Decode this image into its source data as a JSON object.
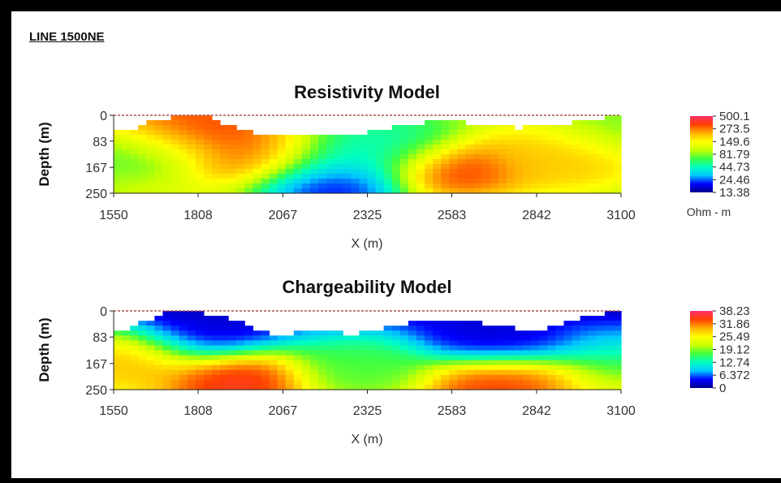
{
  "header": {
    "title": "LINE 1500NE"
  },
  "colors": {
    "ramp": [
      "#00008b",
      "#0000ff",
      "#00c8ff",
      "#00ffc0",
      "#40ff40",
      "#c8ff00",
      "#ffff00",
      "#ffb000",
      "#ff4000",
      "#ff3070"
    ]
  },
  "chart_data": [
    {
      "type": "heatmap",
      "title": "Resistivity Model",
      "xlabel": "X (m)",
      "ylabel": "Depth (m)",
      "xlim": [
        1550,
        3100
      ],
      "ylim": [
        250,
        0
      ],
      "x_ticks": [
        "1550",
        "1808",
        "2067",
        "2325",
        "2583",
        "2842",
        "3100"
      ],
      "y_ticks": [
        "0",
        "83",
        "167",
        "250"
      ],
      "colorbar": {
        "labels": [
          "500.1",
          "273.5",
          "149.6",
          "81.79",
          "44.73",
          "24.46",
          "13.38"
        ],
        "unit": "Ohm - m"
      },
      "surface_depth": [
        [
          1550,
          50
        ],
        [
          1580,
          40
        ],
        [
          1620,
          45
        ],
        [
          1650,
          25
        ],
        [
          1700,
          15
        ],
        [
          1760,
          0
        ],
        [
          1830,
          5
        ],
        [
          1900,
          30
        ],
        [
          1960,
          50
        ],
        [
          2040,
          65
        ],
        [
          2110,
          55
        ],
        [
          2200,
          55
        ],
        [
          2330,
          55
        ],
        [
          2440,
          30
        ],
        [
          2520,
          22
        ],
        [
          2600,
          20
        ],
        [
          2700,
          35
        ],
        [
          2790,
          40
        ],
        [
          2880,
          35
        ],
        [
          2980,
          20
        ],
        [
          3060,
          5
        ],
        [
          3100,
          0
        ]
      ],
      "anomalies": [
        {
          "x": 1800,
          "depth": 55,
          "level": 0.98
        },
        {
          "x": 1710,
          "depth": 30,
          "level": 0.9
        },
        {
          "x": 2000,
          "depth": 130,
          "level": 0.88
        },
        {
          "x": 2215,
          "depth": 220,
          "level": 0.0
        },
        {
          "x": 2240,
          "depth": 150,
          "level": 0.3
        },
        {
          "x": 2590,
          "depth": 170,
          "level": 0.97
        },
        {
          "x": 2400,
          "depth": 100,
          "level": 0.32
        },
        {
          "x": 1660,
          "depth": 95,
          "level": 0.4
        },
        {
          "x": 2890,
          "depth": 130,
          "level": 0.75
        },
        {
          "x": 2960,
          "depth": 120,
          "level": 0.78
        },
        {
          "x": 3060,
          "depth": 60,
          "level": 0.45
        }
      ]
    },
    {
      "type": "heatmap",
      "title": "Chargeability Model",
      "xlabel": "X (m)",
      "ylabel": "Depth (m)",
      "xlim": [
        1550,
        3100
      ],
      "ylim": [
        250,
        0
      ],
      "x_ticks": [
        "1550",
        "1808",
        "2067",
        "2325",
        "2583",
        "2842",
        "3100"
      ],
      "y_ticks": [
        "0",
        "83",
        "167",
        "250"
      ],
      "colorbar": {
        "labels": [
          "38.23",
          "31.86",
          "25.49",
          "19.12",
          "12.74",
          "6.372",
          "0"
        ],
        "unit": ""
      },
      "surface_depth": [
        [
          1550,
          65
        ],
        [
          1600,
          55
        ],
        [
          1650,
          30
        ],
        [
          1700,
          5
        ],
        [
          1760,
          0
        ],
        [
          1840,
          10
        ],
        [
          1930,
          30
        ],
        [
          2030,
          75
        ],
        [
          2100,
          70
        ],
        [
          2200,
          60
        ],
        [
          2290,
          75
        ],
        [
          2400,
          45
        ],
        [
          2500,
          35
        ],
        [
          2580,
          25
        ],
        [
          2700,
          45
        ],
        [
          2800,
          60
        ],
        [
          2870,
          55
        ],
        [
          2980,
          25
        ],
        [
          3100,
          0
        ]
      ],
      "anomalies": [
        {
          "x": 1600,
          "depth": 150,
          "level": 0.82
        },
        {
          "x": 1925,
          "depth": 215,
          "level": 1.0
        },
        {
          "x": 2710,
          "depth": 230,
          "level": 0.95
        },
        {
          "x": 2310,
          "depth": 185,
          "level": 0.45
        },
        {
          "x": 1820,
          "depth": 75,
          "level": 0.05
        },
        {
          "x": 2700,
          "depth": 90,
          "level": 0.05
        }
      ]
    }
  ]
}
